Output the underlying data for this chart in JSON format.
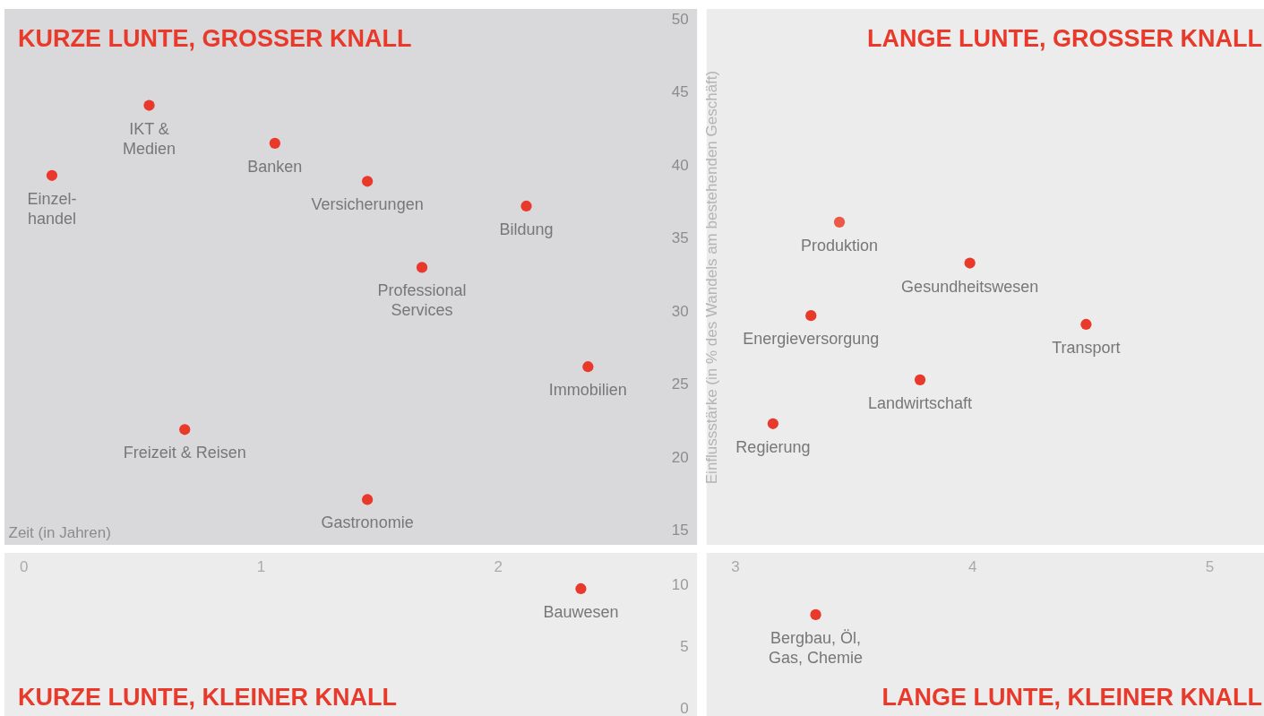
{
  "chart_data": [
    {
      "type": "scatter",
      "xlabel": "Zeit (in Jahren)",
      "ylabel": "Einflussstärke (in % des Wandels am bestehenden Geschäft)",
      "xlim": [
        -0.08,
        5.23
      ],
      "ylim": [
        14,
        50.7
      ],
      "yticks": [
        15,
        20,
        25,
        30,
        35,
        40,
        45,
        50
      ],
      "tick_labels": "y",
      "marker": "circle",
      "bands": [
        {
          "axis": "x",
          "from": -0.08,
          "to": 2.84,
          "color": "#d9d9db"
        },
        {
          "axis": "x",
          "from": 2.88,
          "to": 5.23,
          "color": "#ececec"
        }
      ],
      "annotations": [
        "KURZE LUNTE, GROSSER KNALL",
        "LANGE LUNTE, GROSSER KNALL"
      ],
      "series": [
        {
          "name": "Einzel-\nhandel",
          "color": "#e8392b",
          "x": [
            0.12
          ],
          "values": [
            39.3
          ]
        },
        {
          "name": "IKT &\nMedien",
          "color": "#e8392b",
          "x": [
            0.53
          ],
          "values": [
            44.1
          ]
        },
        {
          "name": "Banken",
          "color": "#e8392b",
          "x": [
            1.06
          ],
          "values": [
            41.5
          ]
        },
        {
          "name": "Versicherungen",
          "color": "#e8392b",
          "x": [
            1.45
          ],
          "values": [
            38.9
          ]
        },
        {
          "name": "Bildung",
          "color": "#e8392b",
          "x": [
            2.12
          ],
          "values": [
            37.2
          ]
        },
        {
          "name": "Professional\nServices",
          "color": "#e8392b",
          "x": [
            1.68
          ],
          "values": [
            33.0
          ]
        },
        {
          "name": "Immobilien",
          "color": "#e8392b",
          "x": [
            2.38
          ],
          "values": [
            26.2
          ]
        },
        {
          "name": "Freizeit & Reisen",
          "color": "#e8392b",
          "x": [
            0.68
          ],
          "values": [
            21.9
          ]
        },
        {
          "name": "Gastronomie",
          "color": "#e8392b",
          "x": [
            1.45
          ],
          "values": [
            17.1
          ]
        },
        {
          "name": "Produktion",
          "color": "#ec5a47",
          "x": [
            3.44
          ],
          "values": [
            36.1
          ]
        },
        {
          "name": "Gesundheitswesen",
          "color": "#e8392b",
          "x": [
            3.99
          ],
          "values": [
            33.3
          ]
        },
        {
          "name": "Energieversorgung",
          "color": "#e8392b",
          "x": [
            3.32
          ],
          "values": [
            29.7
          ]
        },
        {
          "name": "Transport",
          "color": "#e8392b",
          "x": [
            4.48
          ],
          "values": [
            29.1
          ]
        },
        {
          "name": "Landwirtschaft",
          "color": "#e8392b",
          "x": [
            3.78
          ],
          "values": [
            25.3
          ]
        },
        {
          "name": "Regierung",
          "color": "#e8392b",
          "x": [
            3.16
          ],
          "values": [
            22.3
          ]
        }
      ]
    },
    {
      "type": "scatter",
      "xlim": [
        -0.08,
        5.23
      ],
      "xticks": [
        0,
        1,
        2,
        3,
        4,
        5
      ],
      "ylim": [
        -0.6,
        12.6
      ],
      "yticks": [
        0,
        5,
        10
      ],
      "marker": "circle",
      "bands": [
        {
          "axis": "x",
          "from": -0.08,
          "to": 2.84,
          "color": "#ececec"
        },
        {
          "axis": "x",
          "from": 2.88,
          "to": 5.23,
          "color": "#ececec"
        }
      ],
      "annotations": [
        "KURZE LUNTE, KLEINER KNALL",
        "LANGE LUNTE, KLEINER KNALL"
      ],
      "series": [
        {
          "name": "Bauwesen",
          "color": "#e8392b",
          "x": [
            2.35
          ],
          "values": [
            9.7
          ]
        },
        {
          "name": "Bergbau, Öl,\nGas, Chemie",
          "color": "#e8392b",
          "x": [
            3.34
          ],
          "values": [
            7.6
          ]
        }
      ]
    }
  ]
}
